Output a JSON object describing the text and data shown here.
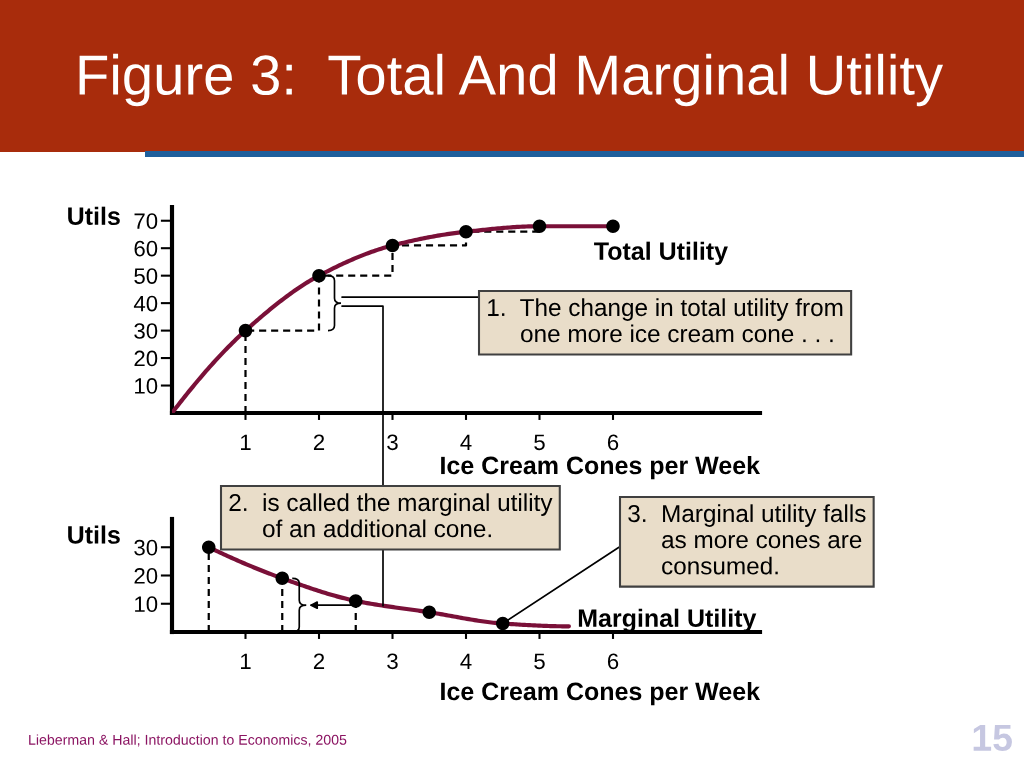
{
  "chart_data": [
    {
      "type": "line",
      "title": "Figure 3:  Total And Marginal Utility",
      "xlabel": "Ice Cream Cones per Week",
      "ylabel": "Utils",
      "xlim": [
        0,
        8
      ],
      "ylim": [
        0,
        75
      ],
      "xticks": [
        1,
        2,
        3,
        4,
        5,
        6
      ],
      "yticks": [
        10,
        20,
        30,
        40,
        50,
        60,
        70
      ],
      "series": [
        {
          "name": "Total Utility",
          "color": "#7a1038",
          "x": [
            0,
            1,
            2,
            3,
            4,
            5,
            6
          ],
          "values": [
            0,
            30,
            50,
            61,
            66,
            68,
            68
          ]
        },
        {
          "type": "scatter",
          "color": "#000000",
          "marker": "circle",
          "x": [
            1,
            2,
            3,
            4,
            5,
            6
          ],
          "values": [
            30,
            50,
            61,
            66,
            68,
            68
          ]
        },
        {
          "type": "step",
          "color": "#000000",
          "line_style": "dashed",
          "x": [
            1,
            1,
            2,
            3,
            4,
            5
          ],
          "values": [
            0,
            30,
            50,
            61,
            66,
            68
          ]
        }
      ],
      "annotations": [
        "1. The change in total utility from\none more ice cream cone . . ."
      ]
    },
    {
      "type": "line",
      "xlabel": "Ice Cream Cones per Week",
      "ylabel": "Utils",
      "xlim": [
        0,
        8
      ],
      "ylim": [
        0,
        40
      ],
      "xticks": [
        1,
        2,
        3,
        4,
        5,
        6
      ],
      "yticks": [
        10,
        20,
        30
      ],
      "series": [
        {
          "name": "Marginal Utility",
          "color": "#7a1038",
          "x": [
            0.5,
            1.5,
            2.5,
            3.5,
            4.5,
            5.4
          ],
          "values": [
            30,
            19,
            11,
            7,
            3,
            2
          ]
        },
        {
          "type": "lollipop",
          "color": "#000000",
          "marker": "circle",
          "line_style": "dashed",
          "x": [
            0.5,
            1.5,
            2.5
          ],
          "values": [
            30,
            19,
            11
          ]
        },
        {
          "type": "scatter",
          "color": "#000000",
          "marker": "circle",
          "x": [
            3.5,
            4.5
          ],
          "values": [
            7,
            3
          ]
        }
      ],
      "annotations": [
        "2. is called the marginal utility\nof an additional cone.",
        {
          "text": "3. Marginal utility falls\nas more cones are\nconsumed.",
          "x": 4.5,
          "y": 3
        },
        "Lieberman & Hall; Introduction to Economics, 2005",
        "15"
      ]
    }
  ]
}
